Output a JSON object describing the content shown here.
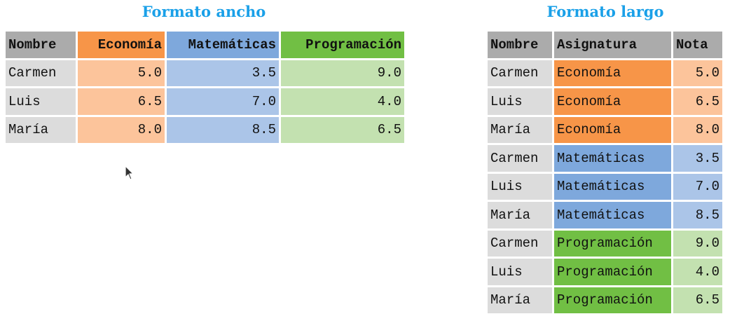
{
  "colors": {
    "title": "#1aa0e8",
    "header_name": "#ababab",
    "cell_name": "#dcdcdc",
    "header_economia": "#f79548",
    "cell_economia": "#fcc49b",
    "header_matematicas": "#7ea8dc",
    "cell_matematicas": "#abc5e8",
    "header_programacion": "#71bf44",
    "cell_programacion": "#c3e1b0"
  },
  "wide": {
    "title": "Formato ancho",
    "headers": [
      "Nombre",
      "Economía",
      "Matemáticas",
      "Programación"
    ],
    "rows": [
      {
        "nombre": "Carmen",
        "economia": "5.0",
        "matematicas": "3.5",
        "programacion": "9.0"
      },
      {
        "nombre": "Luis",
        "economia": "6.5",
        "matematicas": "7.0",
        "programacion": "4.0"
      },
      {
        "nombre": "María",
        "economia": "8.0",
        "matematicas": "8.5",
        "programacion": "6.5"
      }
    ]
  },
  "long": {
    "title": "Formato largo",
    "headers": [
      "Nombre",
      "Asignatura",
      "Nota"
    ],
    "rows": [
      {
        "nombre": "Carmen",
        "asignatura": "Economía",
        "nota": "5.0",
        "group": "economia"
      },
      {
        "nombre": "Luis",
        "asignatura": "Economía",
        "nota": "6.5",
        "group": "economia"
      },
      {
        "nombre": "María",
        "asignatura": "Economía",
        "nota": "8.0",
        "group": "economia"
      },
      {
        "nombre": "Carmen",
        "asignatura": "Matemáticas",
        "nota": "3.5",
        "group": "matematicas"
      },
      {
        "nombre": "Luis",
        "asignatura": "Matemáticas",
        "nota": "7.0",
        "group": "matematicas"
      },
      {
        "nombre": "María",
        "asignatura": "Matemáticas",
        "nota": "8.5",
        "group": "matematicas"
      },
      {
        "nombre": "Carmen",
        "asignatura": "Programación",
        "nota": "9.0",
        "group": "programacion"
      },
      {
        "nombre": "Luis",
        "asignatura": "Programación",
        "nota": "4.0",
        "group": "programacion"
      },
      {
        "nombre": "María",
        "asignatura": "Programación",
        "nota": "6.5",
        "group": "programacion"
      }
    ]
  },
  "cursor_icon": "mouse-pointer-icon"
}
